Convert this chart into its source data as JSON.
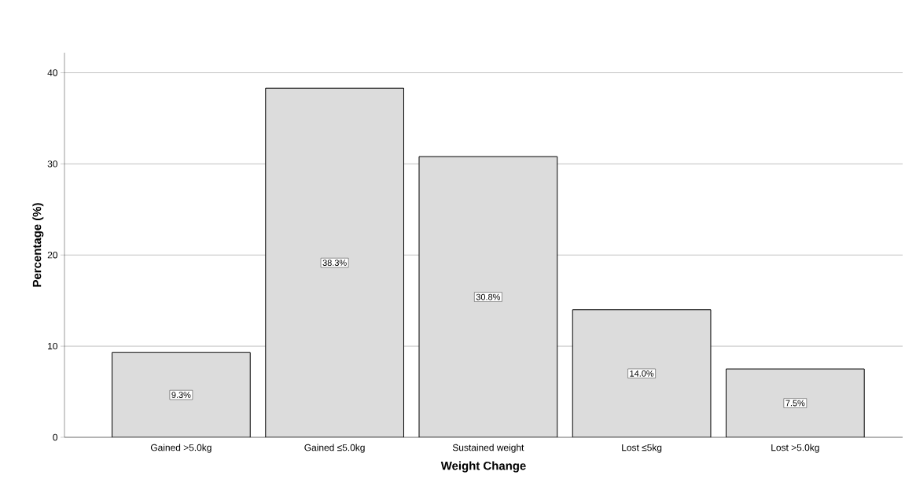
{
  "chart_data": {
    "type": "bar",
    "xlabel": "Weight Change",
    "ylabel": "Percentage (%)",
    "categories": [
      "Gained >5.0kg",
      "Gained ≤5.0kg",
      "Sustained weight",
      "Lost ≤5kg",
      "Lost >5.0kg"
    ],
    "values": [
      9.3,
      38.3,
      30.8,
      14.0,
      7.5
    ],
    "value_labels": [
      "9.3%",
      "38.3%",
      "30.8%",
      "14.0%",
      "7.5%"
    ],
    "color": "#dcdcdc",
    "ylim": [
      0,
      42.2
    ],
    "yticks": [
      0,
      10,
      20,
      30,
      40
    ],
    "grid": "y"
  }
}
